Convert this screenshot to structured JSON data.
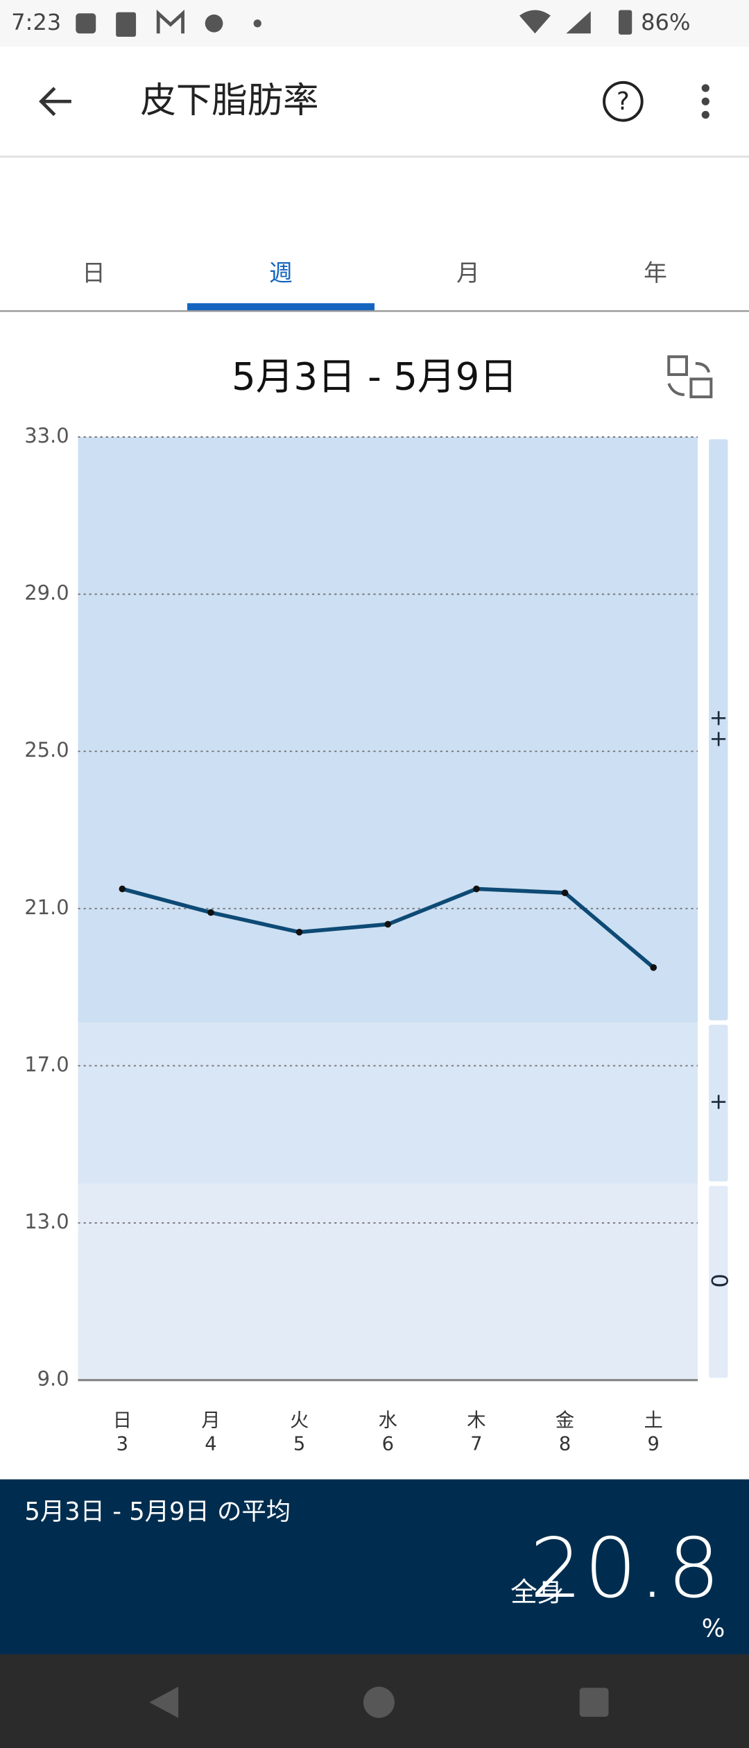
{
  "status_bar": {
    "time": "7:23",
    "battery": "86%"
  },
  "app_bar": {
    "title": "皮下脂肪率"
  },
  "tabs": [
    "日",
    "週",
    "月",
    "年"
  ],
  "active_tab": 1,
  "date_range": "5月3日 - 5月9日",
  "chart_data": {
    "type": "line",
    "categories": [
      "3",
      "4",
      "5",
      "6",
      "7",
      "8",
      "9"
    ],
    "weekdays": [
      "日",
      "月",
      "火",
      "水",
      "木",
      "金",
      "土"
    ],
    "values": [
      21.5,
      20.9,
      20.4,
      20.6,
      21.5,
      21.4,
      19.5
    ],
    "color": "#0d4a75",
    "ylim": [
      9,
      33
    ],
    "yticks": [
      {
        "value": 9,
        "label": "9.0"
      },
      {
        "value": 13,
        "label": "13.0"
      },
      {
        "value": 17,
        "label": "17.0"
      },
      {
        "value": 21,
        "label": "21.0"
      },
      {
        "value": 25,
        "label": "25.0"
      },
      {
        "value": 29,
        "label": "29.0"
      },
      {
        "value": 33,
        "label": "33.0"
      }
    ],
    "grid": true,
    "bands": [
      {
        "label": "0",
        "from": 9,
        "to": 14,
        "color": "#e3ebf7"
      },
      {
        "label": "+",
        "from": 14,
        "to": 18.1,
        "color": "#d9e6f5"
      },
      {
        "label": "++",
        "from": 18.1,
        "to": 33,
        "color": "#cddff2"
      }
    ]
  },
  "summary": {
    "title": "5月3日 - 5月9日 の平均",
    "label": "全身",
    "value": "20.8",
    "unit": "%"
  }
}
